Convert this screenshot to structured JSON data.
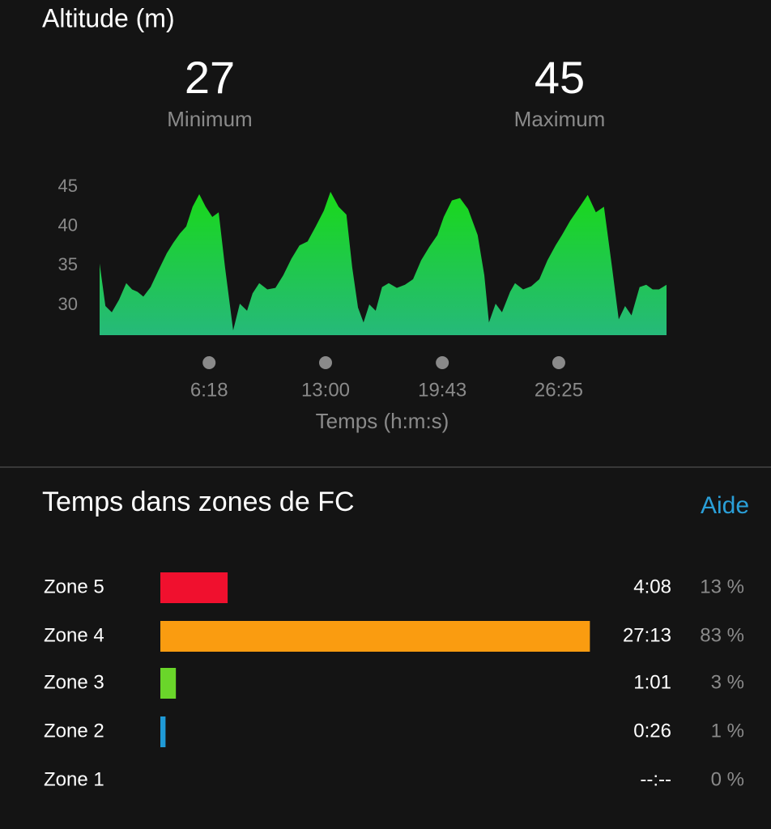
{
  "header": {
    "title": "Altitude (m)"
  },
  "stats": [
    {
      "value": 27,
      "label": "Minimum"
    },
    {
      "value": 45,
      "label": "Maximum"
    }
  ],
  "help_link": "Aide",
  "chart_data": [
    {
      "type": "area",
      "color": "#19d919",
      "fill_bottom": "#26b97a",
      "x_label": "Temps (h:m:s)",
      "x": [
        0,
        20,
        42,
        67,
        92,
        112,
        131,
        151,
        176,
        204,
        232,
        254,
        277,
        299,
        321,
        344,
        366,
        389,
        411,
        433,
        461,
        484,
        509,
        528,
        551,
        579,
        607,
        634,
        662,
        690,
        718,
        746,
        774,
        797,
        825,
        852,
        872,
        892,
        911,
        931,
        953,
        975,
        998,
        1026,
        1054,
        1082,
        1110,
        1138,
        1166,
        1188,
        1216,
        1244,
        1272,
        1305,
        1328,
        1344,
        1367,
        1389,
        1417,
        1434,
        1462,
        1490,
        1518,
        1546,
        1574,
        1596,
        1624,
        1652,
        1685,
        1713,
        1741,
        1769,
        1792,
        1814,
        1836,
        1864,
        1887,
        1909,
        1931,
        1957
      ],
      "values": [
        35.3,
        29.9,
        29.1,
        30.7,
        32.8,
        32.0,
        31.7,
        31.1,
        32.3,
        34.5,
        36.6,
        37.9,
        39.1,
        40.0,
        42.5,
        44.1,
        42.5,
        41.2,
        41.8,
        34.8,
        26.8,
        30.2,
        29.3,
        31.5,
        32.8,
        32.0,
        32.2,
        33.8,
        35.9,
        37.6,
        38.1,
        40.0,
        42.0,
        44.4,
        42.5,
        41.5,
        34.8,
        29.7,
        27.8,
        30.1,
        29.3,
        32.3,
        32.8,
        32.2,
        32.6,
        33.3,
        35.7,
        37.4,
        38.9,
        41.2,
        43.3,
        43.6,
        42.2,
        38.9,
        33.8,
        27.8,
        30.2,
        29.1,
        31.7,
        32.8,
        32.0,
        32.4,
        33.3,
        35.7,
        37.6,
        38.9,
        40.7,
        42.2,
        44.0,
        41.8,
        42.5,
        34.8,
        28.2,
        29.9,
        28.7,
        32.3,
        32.6,
        32.0,
        32.0,
        32.6
      ],
      "xlim": [
        0,
        1957
      ],
      "ylim": [
        26.2,
        47
      ],
      "yticks": [
        30,
        35,
        40,
        45
      ],
      "xticks": [
        {
          "value": 378,
          "label": "6:18"
        },
        {
          "value": 780,
          "label": "13:00"
        },
        {
          "value": 1183,
          "label": "19:43"
        },
        {
          "value": 1585,
          "label": "26:25"
        }
      ]
    },
    {
      "type": "hbar",
      "title": "Temps dans zones de FC",
      "categories": [
        "Zone 5",
        "Zone 4",
        "Zone 3",
        "Zone 2",
        "Zone 1"
      ],
      "values": [
        13,
        83,
        3,
        1,
        0
      ],
      "value_labels": [
        "13 %",
        "83 %",
        "3 %",
        "1 %",
        "0 %"
      ],
      "times": [
        "4:08",
        "27:13",
        "1:01",
        "0:26",
        "--:--"
      ],
      "colors": [
        "#f0102e",
        "#fa9c10",
        "#6ad62a",
        "#1f9ad6",
        "#888888"
      ],
      "xlim": [
        0,
        100
      ]
    }
  ]
}
